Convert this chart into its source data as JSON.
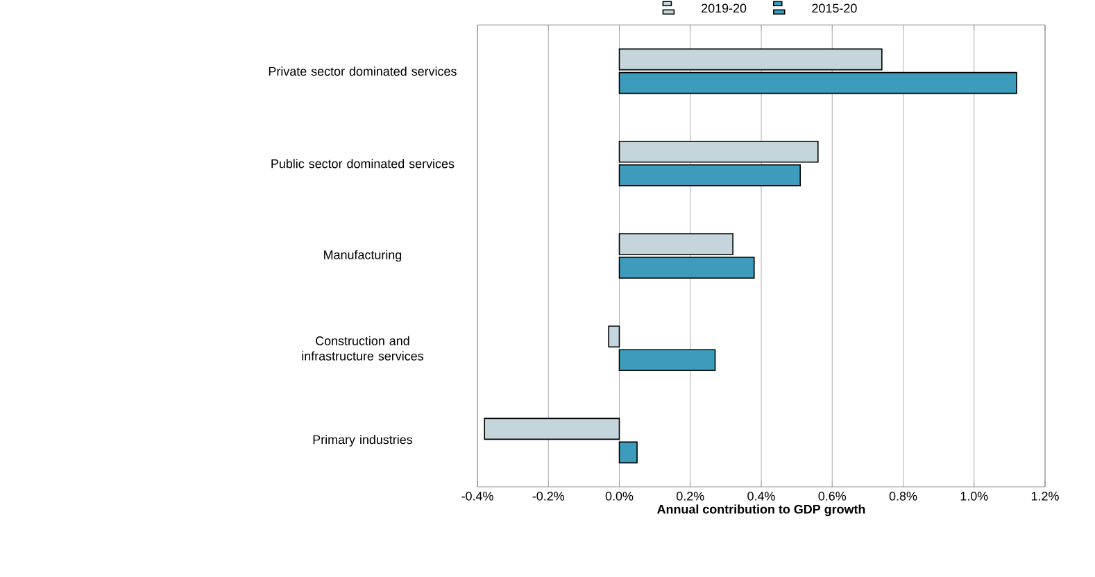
{
  "chart_data": {
    "type": "bar",
    "orientation": "horizontal",
    "xlabel": "Annual contribution to GDP growth",
    "categories": [
      "Private sector dominated services",
      "Public sector dominated services",
      "Manufacturing",
      "Construction and infrastructure services",
      "Primary industries"
    ],
    "series": [
      {
        "name": "2019-20",
        "color": "#c5d5dc",
        "values": [
          0.74,
          0.56,
          0.32,
          -0.03,
          -0.38
        ]
      },
      {
        "name": "2015-20",
        "color": "#3d9bbb",
        "values": [
          1.12,
          0.51,
          0.38,
          0.27,
          0.05
        ]
      }
    ],
    "xlim": [
      -0.4,
      1.2
    ],
    "xticks": [
      {
        "value": -0.4,
        "label": "-0.4%"
      },
      {
        "value": -0.2,
        "label": "-0.2%"
      },
      {
        "value": 0.0,
        "label": "0.0%"
      },
      {
        "value": 0.2,
        "label": "0.2%"
      },
      {
        "value": 0.4,
        "label": "0.4%"
      },
      {
        "value": 0.6,
        "label": "0.6%"
      },
      {
        "value": 0.8,
        "label": "0.8%"
      },
      {
        "value": 1.0,
        "label": "1.0%"
      },
      {
        "value": 1.2,
        "label": "1.2%"
      }
    ],
    "grid": "x",
    "legend": "top"
  }
}
